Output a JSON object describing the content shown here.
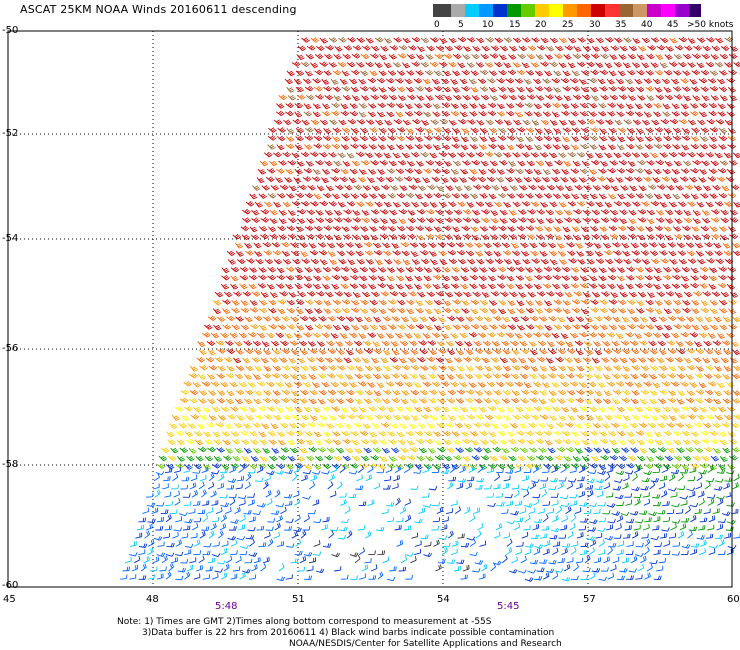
{
  "header": {
    "title": "ASCAT 25KM NOAA Winds 20160611 descending"
  },
  "legend": {
    "colors": [
      "#444444",
      "#999999",
      "#00ccff",
      "#0066ff",
      "#009900",
      "#66cc00",
      "#ffcc00",
      "#ffff00",
      "#ff9900",
      "#ff6600",
      "#cc0000",
      "#ff3333",
      "#996633",
      "#cc9966",
      "#cc00cc",
      "#ff00ff",
      "#9900cc",
      "#330066"
    ],
    "labels": [
      "0",
      "5",
      "10",
      "15",
      "20",
      "25",
      "30",
      "35",
      "40",
      "45",
      ">50 knots"
    ]
  },
  "axes": {
    "lat_labels": [
      "-50",
      "-52",
      "-54",
      "-56",
      "-58",
      "-60"
    ],
    "lon_labels": [
      "45",
      "48",
      "51",
      "54",
      "57",
      "60"
    ]
  },
  "pass_times": [
    "5:48",
    "5:45"
  ],
  "notes": {
    "line1": "Note: 1) Times are GMT 2)Times along bottom correspond to measurement at -55S",
    "line2": "3)Data buffer is 22 hrs from 20160611 4) Black wind barbs indicate possible contamination",
    "line3": "NOAA/NESDIS/Center for Satellite Applications and Research"
  }
}
